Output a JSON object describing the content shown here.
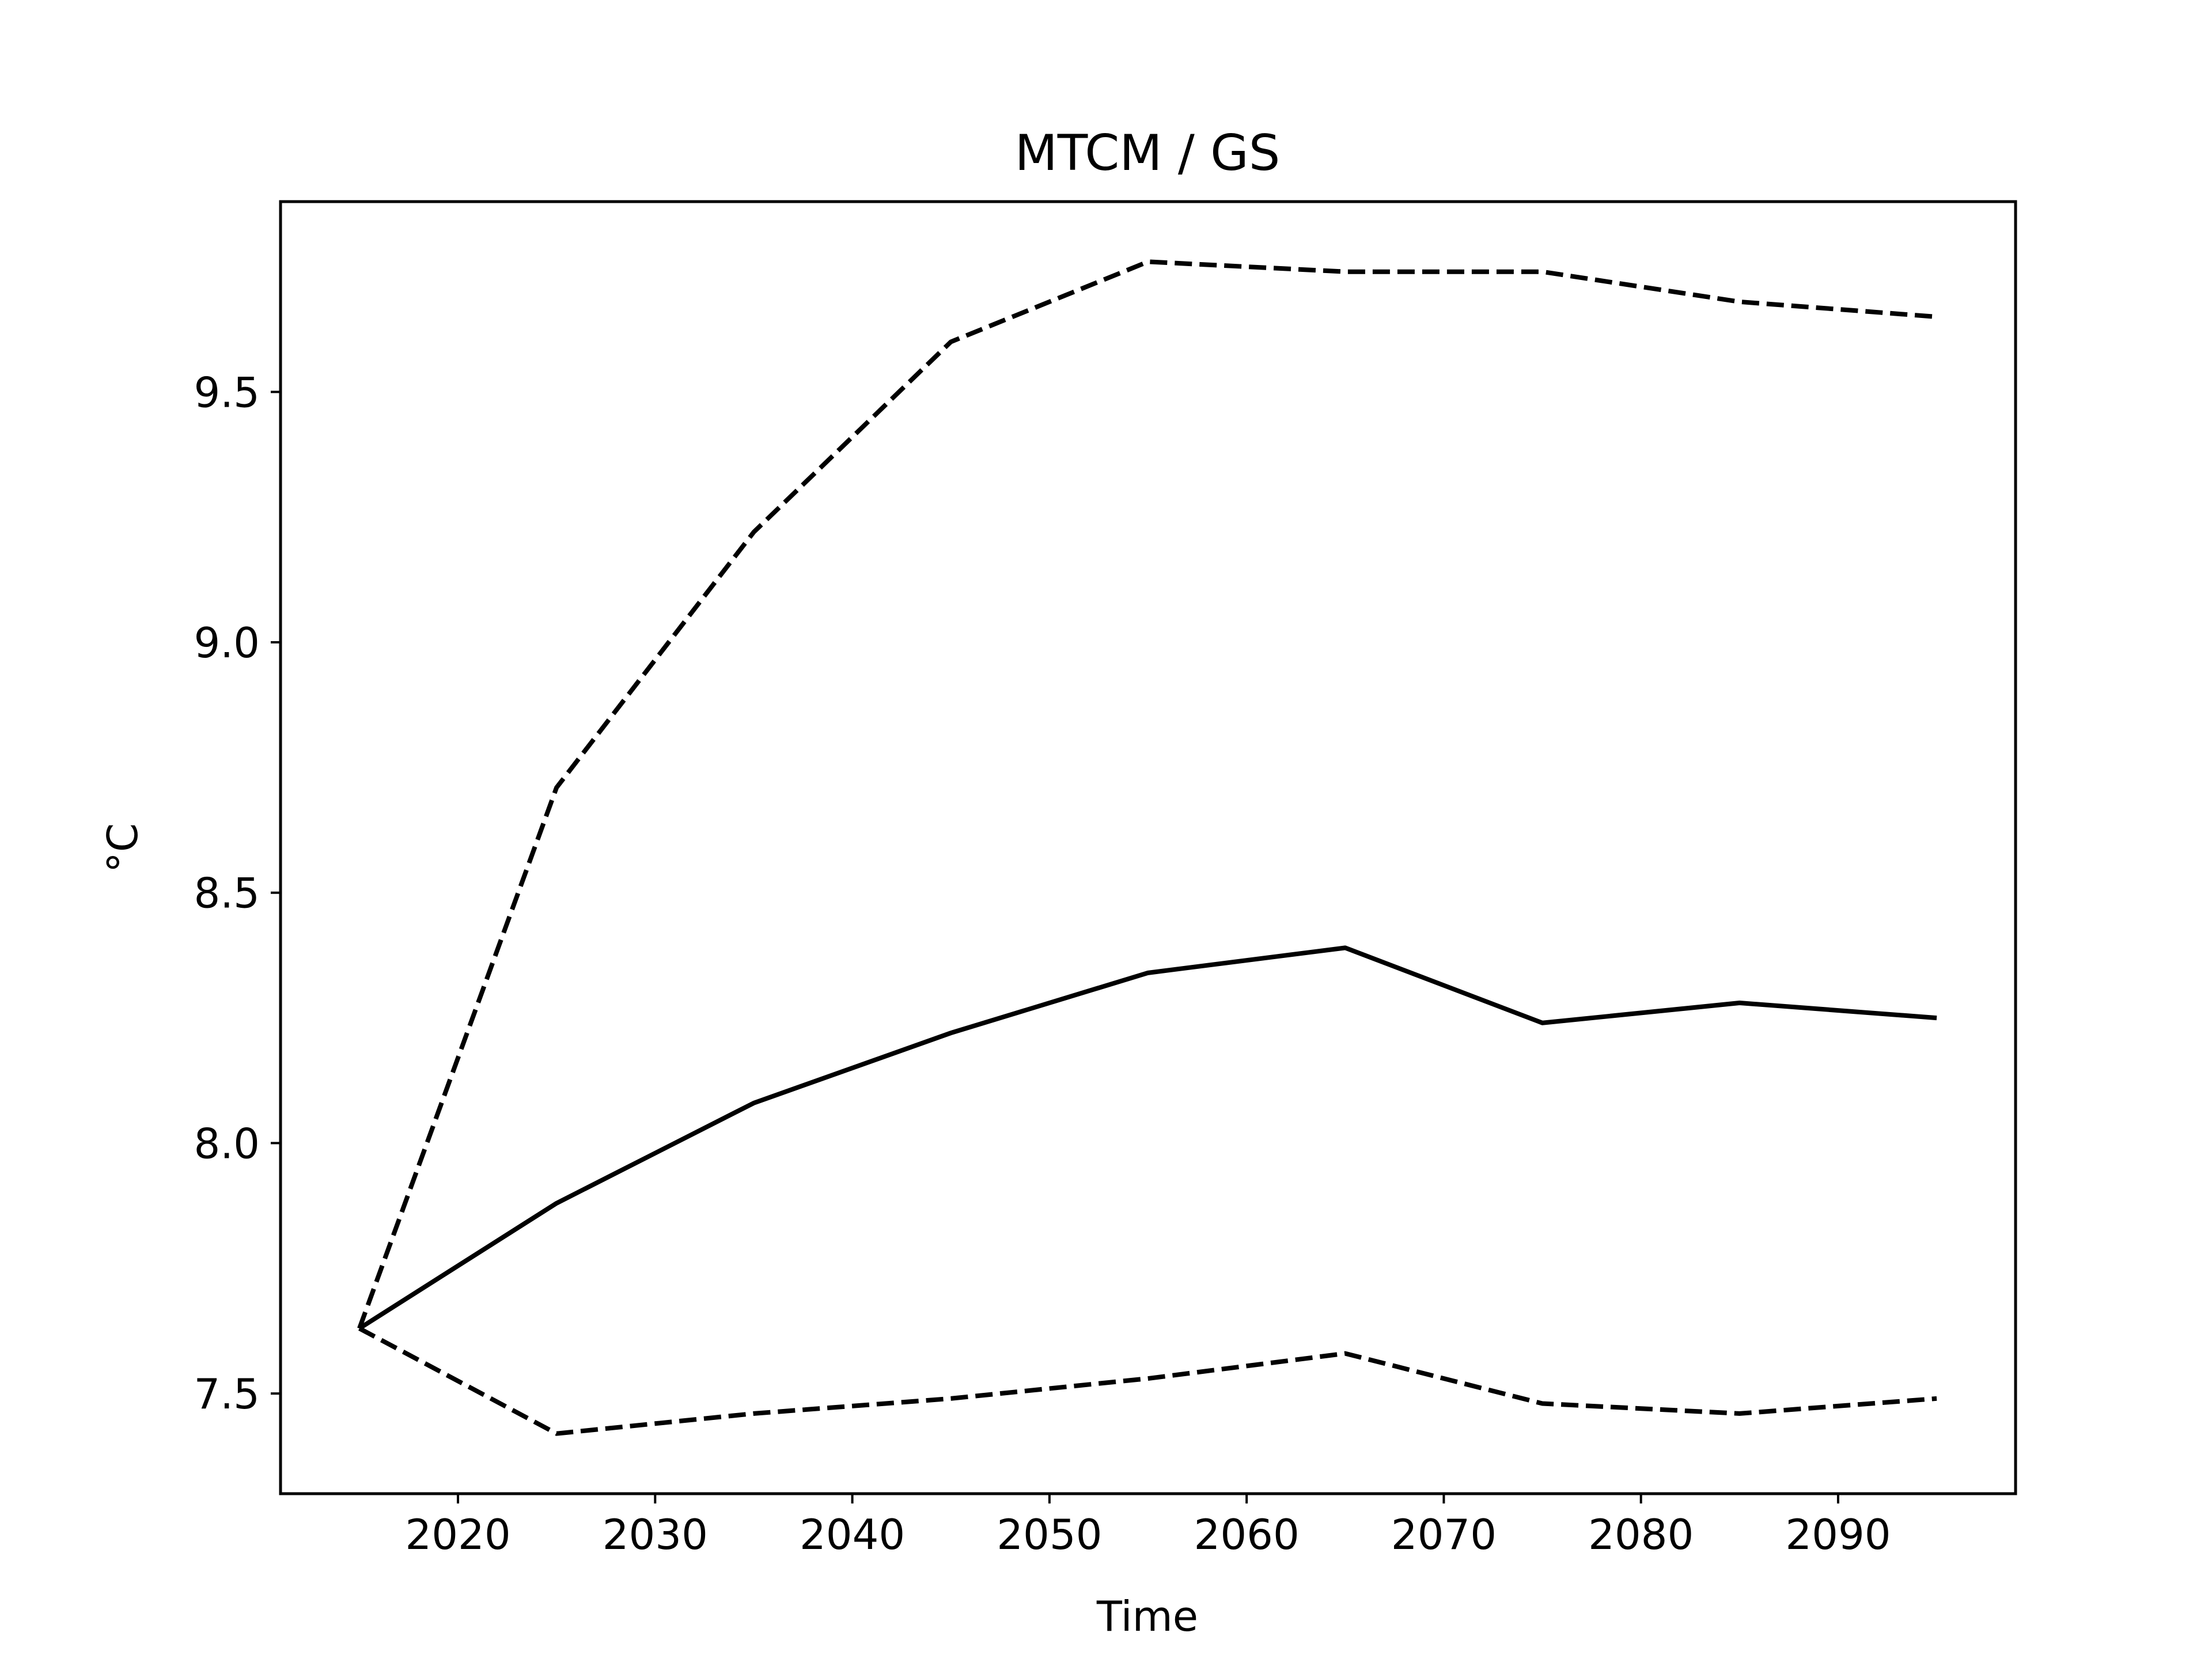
{
  "chart_data": {
    "type": "line",
    "title": "MTCM / GS",
    "xlabel": "Time",
    "ylabel": "°C",
    "xlim": [
      2011,
      2099
    ],
    "ylim": [
      7.3,
      9.88
    ],
    "x_ticks": [
      2020,
      2030,
      2040,
      2050,
      2060,
      2070,
      2080,
      2090
    ],
    "x_tick_labels": [
      "2020",
      "2030",
      "2040",
      "2050",
      "2060",
      "2070",
      "2080",
      "2090"
    ],
    "y_ticks": [
      7.5,
      8.0,
      8.5,
      9.0,
      9.5
    ],
    "y_tick_labels": [
      "7.5",
      "8.0",
      "8.5",
      "9.0",
      "9.5"
    ],
    "grid": false,
    "legend": "none",
    "x": [
      2015,
      2025,
      2035,
      2045,
      2055,
      2065,
      2075,
      2085,
      2095
    ],
    "series": [
      {
        "style": "dashed",
        "color": "#000000",
        "values": [
          7.63,
          8.71,
          9.22,
          9.6,
          9.76,
          9.74,
          9.74,
          9.68,
          9.65
        ]
      },
      {
        "style": "solid",
        "color": "#000000",
        "values": [
          7.63,
          7.88,
          8.08,
          8.22,
          8.34,
          8.39,
          8.24,
          8.28,
          8.25
        ]
      },
      {
        "style": "dashed",
        "color": "#000000",
        "values": [
          7.63,
          7.42,
          7.46,
          7.49,
          7.53,
          7.58,
          7.48,
          7.46,
          7.49
        ]
      }
    ]
  }
}
